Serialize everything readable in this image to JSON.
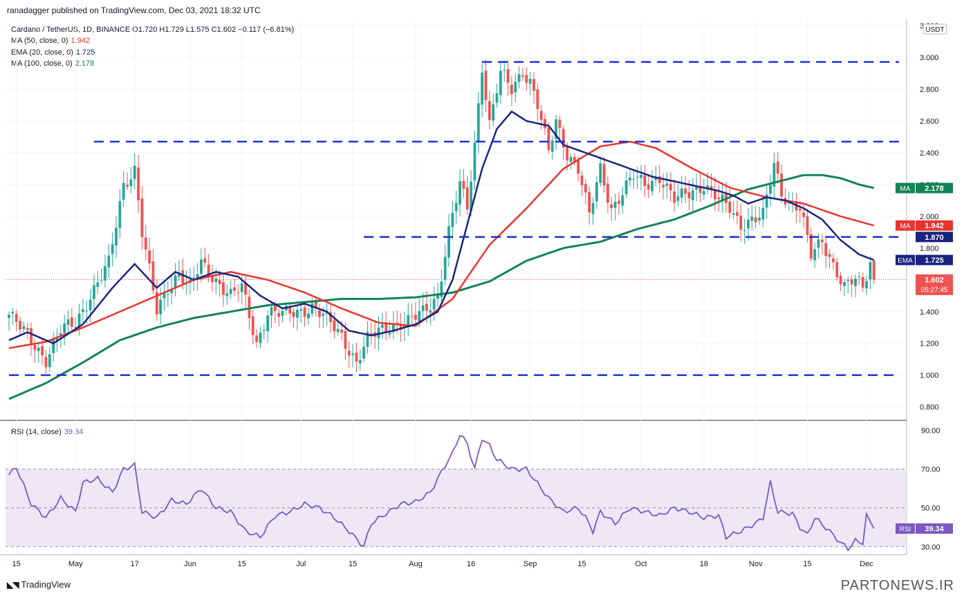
{
  "header": {
    "published_by": "ranadagger published on TradingView.com, Dec 03, 2021 18:32 UTC",
    "symbol_line": "Cardano / TetherUS, 1D, BINANCE  O1.720  H1.729  L1.575  C1.602  −0.117 (−6.81%)",
    "indicators": [
      {
        "label": "MA (50, close, 0)",
        "value": "1.942",
        "color": "#e8342f"
      },
      {
        "label": "EMA (20, close, 0)",
        "value": "1.725",
        "color": "#1a237e"
      },
      {
        "label": "MA (100, close, 0)",
        "value": "2.178",
        "color": "#138257"
      }
    ],
    "rsi_label": "RSI (14, close)",
    "rsi_value": "39.34"
  },
  "price_axis": {
    "currency": "USDT",
    "ticks": [
      "0.800",
      "1.000",
      "1.200",
      "1.400",
      "1.600",
      "1.800",
      "2.000",
      "2.200",
      "2.400",
      "2.600",
      "2.800",
      "3.000",
      "3.200"
    ]
  },
  "rsi_axis": {
    "ticks": [
      "30.00",
      "50.00",
      "70.00",
      "90.00"
    ]
  },
  "x_axis": {
    "ticks": [
      {
        "label": "15",
        "i": 2
      },
      {
        "label": "May",
        "i": 18
      },
      {
        "label": "17",
        "i": 34
      },
      {
        "label": "Jun",
        "i": 49
      },
      {
        "label": "15",
        "i": 63
      },
      {
        "label": "Jul",
        "i": 79
      },
      {
        "label": "15",
        "i": 93
      },
      {
        "label": "Aug",
        "i": 110
      },
      {
        "label": "16",
        "i": 125
      },
      {
        "label": "Sep",
        "i": 141
      },
      {
        "label": "15",
        "i": 155
      },
      {
        "label": "Oct",
        "i": 171
      },
      {
        "label": "18",
        "i": 188
      },
      {
        "label": "Nov",
        "i": 202
      },
      {
        "label": "15",
        "i": 216
      },
      {
        "label": "Dec",
        "i": 232
      }
    ]
  },
  "levels": [
    {
      "value": "2.972",
      "price": 2.972,
      "from_i": 128
    },
    {
      "value": "2.470",
      "price": 2.47,
      "from_i": 23
    },
    {
      "value": "1.870",
      "price": 1.87,
      "from_i": 96
    },
    {
      "value": "1.000",
      "price": 1.0,
      "from_i": 0
    }
  ],
  "price_tags": [
    {
      "tag": "MA",
      "value": "2.178",
      "price": 2.178,
      "color": "#138257"
    },
    {
      "tag": "MA",
      "value": "1.942",
      "price": 1.942,
      "color": "#e8342f"
    },
    {
      "tag": "",
      "value": "1.870",
      "price": 1.87,
      "color": "#1a237e"
    },
    {
      "tag": "EMA",
      "value": "1.725",
      "price": 1.725,
      "color": "#1a237e"
    },
    {
      "tag": "",
      "value": "1.602",
      "price": 1.602,
      "color": "#ef5350",
      "sub": "05:27:45"
    }
  ],
  "colors": {
    "up": "#26a69a",
    "down": "#ef5350",
    "level": "#1f2fd6",
    "rsi_line": "#7e57c2",
    "rsi_band": "#ede7f6"
  },
  "footer": {
    "brand": "TradingView",
    "watermark": "PARTONEWS.IR"
  },
  "chart_data": {
    "type": "candlestick",
    "title": "Cardano / TetherUS, 1D, BINANCE",
    "ylabel": "USDT",
    "ylim": [
      0.72,
      3.24
    ],
    "close_anchors": [
      [
        0,
        1.38
      ],
      [
        6,
        1.22
      ],
      [
        10,
        1.1
      ],
      [
        14,
        1.28
      ],
      [
        18,
        1.33
      ],
      [
        22,
        1.5
      ],
      [
        27,
        1.7
      ],
      [
        31,
        2.2
      ],
      [
        34,
        2.3
      ],
      [
        36,
        1.9
      ],
      [
        40,
        1.4
      ],
      [
        43,
        1.55
      ],
      [
        46,
        1.65
      ],
      [
        49,
        1.55
      ],
      [
        52,
        1.7
      ],
      [
        56,
        1.6
      ],
      [
        60,
        1.5
      ],
      [
        63,
        1.55
      ],
      [
        67,
        1.2
      ],
      [
        70,
        1.4
      ],
      [
        74,
        1.38
      ],
      [
        78,
        1.4
      ],
      [
        82,
        1.43
      ],
      [
        86,
        1.35
      ],
      [
        90,
        1.25
      ],
      [
        94,
        1.08
      ],
      [
        97,
        1.22
      ],
      [
        100,
        1.28
      ],
      [
        104,
        1.32
      ],
      [
        108,
        1.33
      ],
      [
        112,
        1.4
      ],
      [
        116,
        1.5
      ],
      [
        119,
        1.9
      ],
      [
        122,
        2.2
      ],
      [
        124,
        2.05
      ],
      [
        126,
        2.46
      ],
      [
        128,
        2.95
      ],
      [
        130,
        2.58
      ],
      [
        133,
        2.9
      ],
      [
        136,
        2.8
      ],
      [
        139,
        2.92
      ],
      [
        141,
        2.85
      ],
      [
        143,
        2.7
      ],
      [
        146,
        2.4
      ],
      [
        148,
        2.6
      ],
      [
        151,
        2.4
      ],
      [
        154,
        2.3
      ],
      [
        157,
        2.0
      ],
      [
        160,
        2.3
      ],
      [
        163,
        2.05
      ],
      [
        166,
        2.15
      ],
      [
        169,
        2.25
      ],
      [
        172,
        2.2
      ],
      [
        176,
        2.25
      ],
      [
        180,
        2.1
      ],
      [
        184,
        2.15
      ],
      [
        188,
        2.2
      ],
      [
        192,
        2.1
      ],
      [
        195,
        2.05
      ],
      [
        198,
        1.95
      ],
      [
        201,
        1.98
      ],
      [
        204,
        2.0
      ],
      [
        207,
        2.33
      ],
      [
        209,
        2.15
      ],
      [
        211,
        2.1
      ],
      [
        214,
        2.05
      ],
      [
        217,
        1.75
      ],
      [
        220,
        1.85
      ],
      [
        223,
        1.7
      ],
      [
        226,
        1.55
      ],
      [
        229,
        1.6
      ],
      [
        231,
        1.55
      ],
      [
        233,
        1.72
      ],
      [
        234,
        1.602
      ]
    ],
    "ma50_anchors": [
      [
        0,
        1.17
      ],
      [
        10,
        1.21
      ],
      [
        20,
        1.3
      ],
      [
        30,
        1.4
      ],
      [
        40,
        1.5
      ],
      [
        50,
        1.6
      ],
      [
        60,
        1.65
      ],
      [
        70,
        1.6
      ],
      [
        80,
        1.52
      ],
      [
        90,
        1.42
      ],
      [
        100,
        1.33
      ],
      [
        110,
        1.31
      ],
      [
        120,
        1.48
      ],
      [
        130,
        1.82
      ],
      [
        140,
        2.05
      ],
      [
        150,
        2.3
      ],
      [
        160,
        2.44
      ],
      [
        168,
        2.47
      ],
      [
        175,
        2.43
      ],
      [
        185,
        2.3
      ],
      [
        195,
        2.18
      ],
      [
        205,
        2.12
      ],
      [
        215,
        2.08
      ],
      [
        225,
        2.0
      ],
      [
        234,
        1.942
      ]
    ],
    "ema20_anchors": [
      [
        0,
        1.22
      ],
      [
        5,
        1.27
      ],
      [
        12,
        1.2
      ],
      [
        20,
        1.32
      ],
      [
        28,
        1.55
      ],
      [
        34,
        1.7
      ],
      [
        40,
        1.55
      ],
      [
        45,
        1.65
      ],
      [
        50,
        1.6
      ],
      [
        56,
        1.65
      ],
      [
        62,
        1.62
      ],
      [
        68,
        1.5
      ],
      [
        74,
        1.42
      ],
      [
        80,
        1.45
      ],
      [
        86,
        1.4
      ],
      [
        92,
        1.28
      ],
      [
        98,
        1.25
      ],
      [
        104,
        1.28
      ],
      [
        110,
        1.32
      ],
      [
        116,
        1.4
      ],
      [
        120,
        1.6
      ],
      [
        124,
        1.95
      ],
      [
        128,
        2.3
      ],
      [
        132,
        2.55
      ],
      [
        136,
        2.66
      ],
      [
        140,
        2.6
      ],
      [
        146,
        2.57
      ],
      [
        150,
        2.45
      ],
      [
        156,
        2.4
      ],
      [
        162,
        2.35
      ],
      [
        168,
        2.3
      ],
      [
        174,
        2.25
      ],
      [
        180,
        2.22
      ],
      [
        186,
        2.19
      ],
      [
        192,
        2.16
      ],
      [
        196,
        2.13
      ],
      [
        200,
        2.08
      ],
      [
        205,
        2.12
      ],
      [
        210,
        2.1
      ],
      [
        215,
        2.05
      ],
      [
        220,
        1.98
      ],
      [
        225,
        1.85
      ],
      [
        230,
        1.76
      ],
      [
        234,
        1.725
      ]
    ],
    "ma100_anchors": [
      [
        0,
        0.85
      ],
      [
        10,
        0.95
      ],
      [
        20,
        1.08
      ],
      [
        30,
        1.22
      ],
      [
        40,
        1.3
      ],
      [
        50,
        1.36
      ],
      [
        60,
        1.4
      ],
      [
        70,
        1.44
      ],
      [
        80,
        1.46
      ],
      [
        90,
        1.48
      ],
      [
        100,
        1.48
      ],
      [
        110,
        1.49
      ],
      [
        120,
        1.52
      ],
      [
        130,
        1.59
      ],
      [
        140,
        1.72
      ],
      [
        150,
        1.8
      ],
      [
        160,
        1.84
      ],
      [
        170,
        1.92
      ],
      [
        180,
        1.98
      ],
      [
        190,
        2.07
      ],
      [
        200,
        2.17
      ],
      [
        210,
        2.23
      ],
      [
        215,
        2.26
      ],
      [
        220,
        2.26
      ],
      [
        225,
        2.24
      ],
      [
        230,
        2.2
      ],
      [
        234,
        2.178
      ]
    ],
    "rsi": {
      "ylim": [
        26,
        93
      ],
      "levels": [
        30,
        50,
        70
      ]
    },
    "rsi_anchors": [
      [
        0,
        67
      ],
      [
        2,
        71
      ],
      [
        6,
        52
      ],
      [
        10,
        45
      ],
      [
        14,
        55
      ],
      [
        18,
        48
      ],
      [
        20,
        63
      ],
      [
        24,
        65
      ],
      [
        28,
        58
      ],
      [
        31,
        70
      ],
      [
        34,
        72
      ],
      [
        36,
        48
      ],
      [
        40,
        45
      ],
      [
        44,
        54
      ],
      [
        48,
        52
      ],
      [
        52,
        60
      ],
      [
        56,
        50
      ],
      [
        60,
        48
      ],
      [
        64,
        38
      ],
      [
        68,
        35
      ],
      [
        72,
        46
      ],
      [
        76,
        48
      ],
      [
        80,
        52
      ],
      [
        84,
        50
      ],
      [
        88,
        45
      ],
      [
        92,
        38
      ],
      [
        96,
        30
      ],
      [
        98,
        42
      ],
      [
        102,
        47
      ],
      [
        106,
        52
      ],
      [
        110,
        53
      ],
      [
        114,
        58
      ],
      [
        118,
        72
      ],
      [
        120,
        78
      ],
      [
        122,
        88
      ],
      [
        124,
        83
      ],
      [
        126,
        70
      ],
      [
        128,
        86
      ],
      [
        130,
        82
      ],
      [
        132,
        75
      ],
      [
        136,
        70
      ],
      [
        140,
        70
      ],
      [
        142,
        65
      ],
      [
        146,
        55
      ],
      [
        150,
        48
      ],
      [
        154,
        50
      ],
      [
        156,
        45
      ],
      [
        158,
        38
      ],
      [
        160,
        48
      ],
      [
        164,
        42
      ],
      [
        168,
        50
      ],
      [
        172,
        48
      ],
      [
        176,
        46
      ],
      [
        180,
        50
      ],
      [
        184,
        48
      ],
      [
        188,
        45
      ],
      [
        192,
        46
      ],
      [
        194,
        35
      ],
      [
        198,
        38
      ],
      [
        202,
        42
      ],
      [
        204,
        45
      ],
      [
        206,
        63
      ],
      [
        208,
        48
      ],
      [
        212,
        47
      ],
      [
        214,
        40
      ],
      [
        216,
        36
      ],
      [
        218,
        45
      ],
      [
        222,
        38
      ],
      [
        225,
        32
      ],
      [
        227,
        29
      ],
      [
        229,
        33
      ],
      [
        231,
        32
      ],
      [
        232,
        46
      ],
      [
        234,
        39.34
      ]
    ]
  }
}
